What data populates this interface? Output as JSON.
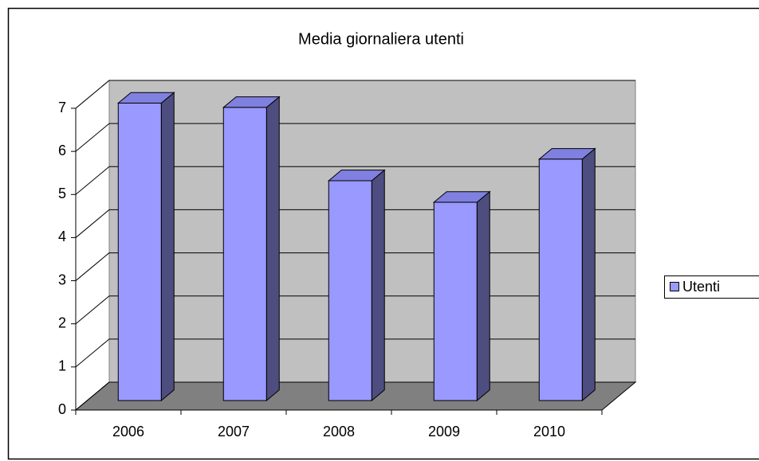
{
  "chart_data": {
    "type": "bar3d",
    "title": "Media giornaliera utenti",
    "categories": [
      "2006",
      "2007",
      "2008",
      "2009",
      "2010"
    ],
    "series": [
      {
        "name": "Utenti",
        "color": "#9999ff",
        "values": [
          6.9,
          6.8,
          5.1,
          4.6,
          5.6
        ]
      }
    ],
    "ylim": [
      0,
      7
    ],
    "yticks": [
      0,
      1,
      2,
      3,
      4,
      5,
      6,
      7
    ],
    "grid": true,
    "legend": "right"
  }
}
